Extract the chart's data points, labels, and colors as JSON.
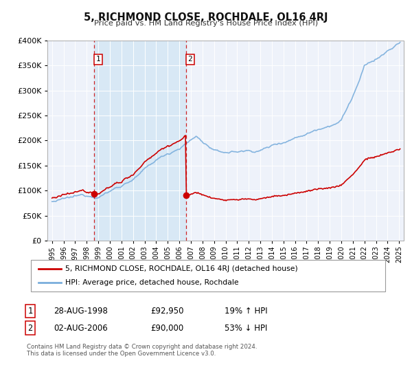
{
  "title": "5, RICHMOND CLOSE, ROCHDALE, OL16 4RJ",
  "subtitle": "Price paid vs. HM Land Registry's House Price Index (HPI)",
  "bg_color": "#ffffff",
  "plot_bg_color": "#eef2fa",
  "grid_color": "#cccccc",
  "line1_color": "#cc0000",
  "line2_color": "#7aaedc",
  "shade_color": "#d8e8f5",
  "ylim": [
    0,
    400000
  ],
  "yticks": [
    0,
    50000,
    100000,
    150000,
    200000,
    250000,
    300000,
    350000,
    400000
  ],
  "sale1_date": 1998.65,
  "sale1_price": 92950,
  "sale1_label": "1",
  "sale1_hpi_pct": "19% ↑ HPI",
  "sale1_date_str": "28-AUG-1998",
  "sale2_date": 2006.58,
  "sale2_price": 90000,
  "sale2_label": "2",
  "sale2_hpi_pct": "53% ↓ HPI",
  "sale2_date_str": "02-AUG-2006",
  "legend_line1": "5, RICHMOND CLOSE, ROCHDALE, OL16 4RJ (detached house)",
  "legend_line2": "HPI: Average price, detached house, Rochdale",
  "footnote1": "Contains HM Land Registry data © Crown copyright and database right 2024.",
  "footnote2": "This data is licensed under the Open Government Licence v3.0."
}
